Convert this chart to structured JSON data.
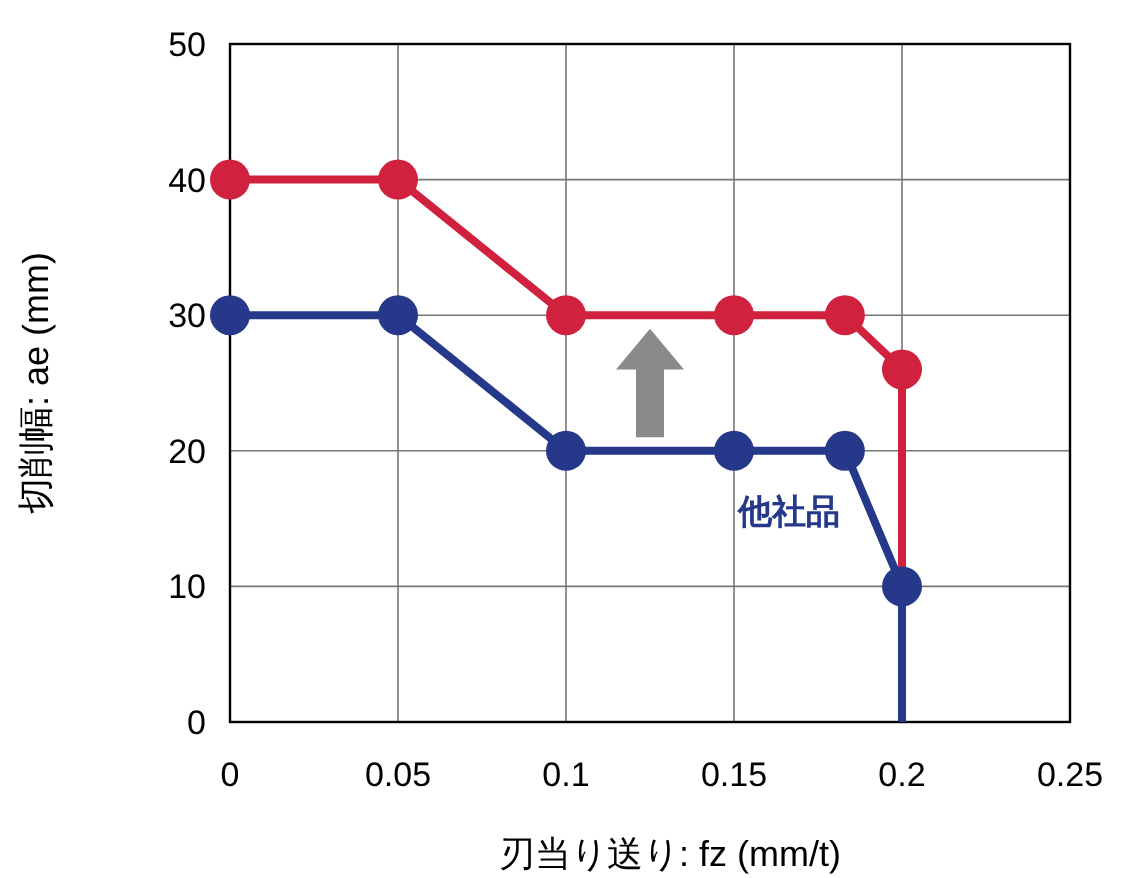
{
  "chart_data": {
    "type": "line",
    "xlabel": "刃当り送り: fz (mm/t)",
    "ylabel": "切削幅: ae (mm)",
    "xlim": [
      0,
      0.25
    ],
    "xticks": [
      0,
      0.05,
      0.1,
      0.15,
      0.2,
      0.25
    ],
    "ylim": [
      0,
      50
    ],
    "yticks": [
      0,
      10,
      20,
      30,
      40,
      50
    ],
    "grid": true,
    "marker": "circle",
    "line_style": "solid",
    "series": [
      {
        "color": "#d0213f",
        "x": [
          0,
          0.05,
          0.1,
          0.15,
          0.183,
          0.2
        ],
        "values": [
          40,
          40,
          30,
          30,
          30,
          26
        ]
      },
      {
        "color": "#d0213f",
        "x": [
          0.2,
          0.2
        ],
        "values": [
          26,
          0
        ],
        "marker": "none"
      },
      {
        "name": "他社品",
        "color": "#25388a",
        "x": [
          0,
          0.05,
          0.1,
          0.15,
          0.183,
          0.2
        ],
        "values": [
          30,
          30,
          20,
          20,
          20,
          10
        ]
      },
      {
        "color": "#25388a",
        "x": [
          0.2,
          0.2
        ],
        "values": [
          10,
          0
        ],
        "marker": "none"
      }
    ]
  }
}
